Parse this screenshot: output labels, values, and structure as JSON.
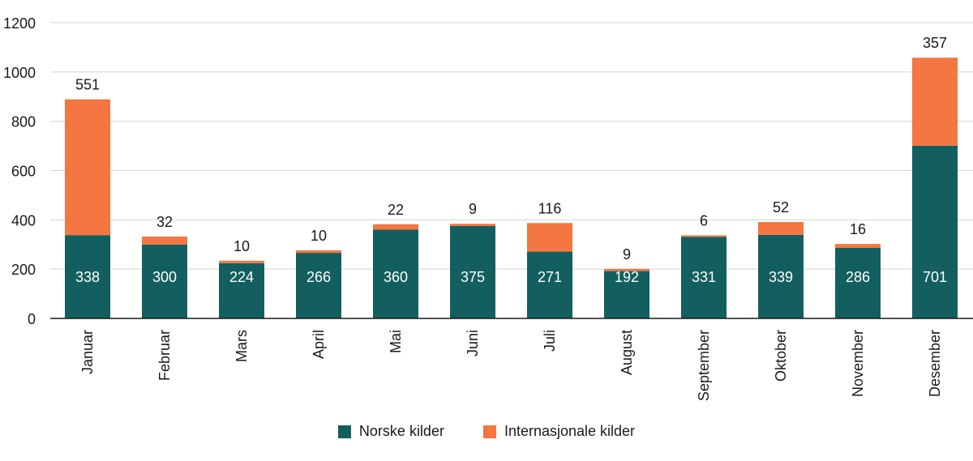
{
  "chart_data": {
    "type": "bar",
    "stacked": true,
    "title": "",
    "xlabel": "",
    "ylabel": "",
    "ylim": [
      0,
      1200
    ],
    "yticks": [
      0,
      200,
      400,
      600,
      800,
      1000,
      1200
    ],
    "grid": true,
    "legend_position": "bottom",
    "categories": [
      "Januar",
      "Februar",
      "Mars",
      "April",
      "Mai",
      "Juni",
      "Juli",
      "August",
      "September",
      "Oktober",
      "November",
      "Desember"
    ],
    "series": [
      {
        "name": "Norske kilder",
        "color": "#135f5f",
        "values": [
          338,
          300,
          224,
          266,
          360,
          375,
          271,
          192,
          331,
          339,
          286,
          701
        ]
      },
      {
        "name": "Internasjonale kilder",
        "color": "#f47640",
        "values": [
          551,
          32,
          10,
          10,
          22,
          9,
          116,
          9,
          6,
          52,
          16,
          357
        ]
      }
    ]
  }
}
